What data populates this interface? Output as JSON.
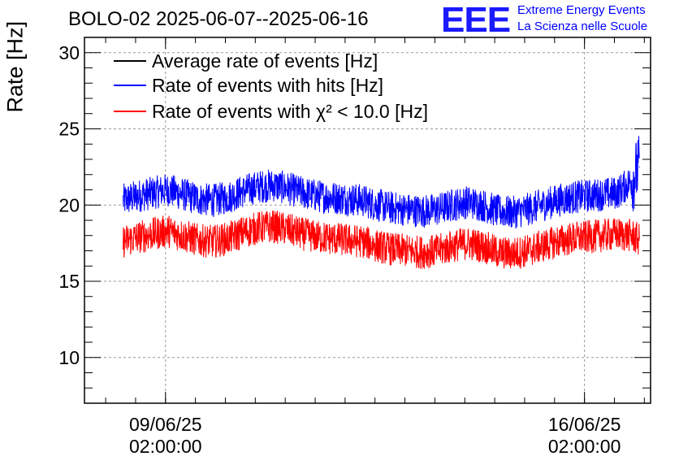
{
  "header": {
    "title": "BOLO-02 2025-06-07--2025-06-16",
    "logo_text": "EEE",
    "logo_line1": "Extreme Energy Events",
    "logo_line2": "La Scienza nelle Scuole"
  },
  "colors": {
    "average": "#000000",
    "hits": "#0000ff",
    "chi2": "#ff0000",
    "logo": "#1a1aff"
  },
  "chart_data": {
    "type": "line",
    "ylabel": "Rate [Hz]",
    "xlabel": "",
    "ylim": [
      7,
      31
    ],
    "yticks": [
      10,
      15,
      20,
      25,
      30
    ],
    "xlim": [
      "2025-06-07T17:30:00",
      "2025-06-17T04:30:00"
    ],
    "xticks": [
      {
        "x": "2025-06-09T02:00:00",
        "date": "09/06/25",
        "time": "02:00:00"
      },
      {
        "x": "2025-06-16T02:00:00",
        "date": "16/06/25",
        "time": "02:00:00"
      }
    ],
    "grid": true,
    "legend_position": "top-left",
    "series": [
      {
        "name": "Average rate of events [Hz]",
        "color": "#000000",
        "x": [],
        "y": []
      },
      {
        "name": "Rate of events with hits [Hz]",
        "color": "#0000ff",
        "x": [
          "2025-06-08T09:00:00",
          "2025-06-08T15:00:00",
          "2025-06-08T21:00:00",
          "2025-06-09T03:00:00",
          "2025-06-09T09:00:00",
          "2025-06-09T15:00:00",
          "2025-06-09T21:00:00",
          "2025-06-10T03:00:00",
          "2025-06-10T09:00:00",
          "2025-06-10T15:00:00",
          "2025-06-10T21:00:00",
          "2025-06-11T03:00:00",
          "2025-06-11T09:00:00",
          "2025-06-11T15:00:00",
          "2025-06-11T21:00:00",
          "2025-06-12T03:00:00",
          "2025-06-12T09:00:00",
          "2025-06-12T15:00:00",
          "2025-06-12T21:00:00",
          "2025-06-13T03:00:00",
          "2025-06-13T09:00:00",
          "2025-06-13T15:00:00",
          "2025-06-13T21:00:00",
          "2025-06-14T03:00:00",
          "2025-06-14T09:00:00",
          "2025-06-14T15:00:00",
          "2025-06-14T21:00:00",
          "2025-06-15T03:00:00",
          "2025-06-15T09:00:00",
          "2025-06-15T15:00:00",
          "2025-06-15T21:00:00",
          "2025-06-16T03:00:00",
          "2025-06-16T09:00:00",
          "2025-06-16T15:00:00",
          "2025-06-16T21:00:00",
          "2025-06-17T00:00:00"
        ],
        "y": [
          20.3,
          20.6,
          20.8,
          21.0,
          20.7,
          20.4,
          20.3,
          20.5,
          20.9,
          21.2,
          21.3,
          21.1,
          20.8,
          20.6,
          20.5,
          20.4,
          20.3,
          20.0,
          19.8,
          19.7,
          19.6,
          19.7,
          20.0,
          20.2,
          20.0,
          19.6,
          19.5,
          19.7,
          20.0,
          20.3,
          20.5,
          20.6,
          20.7,
          20.8,
          21.6,
          22.5
        ]
      },
      {
        "name": "Rate of events with χ² < 10.0 [Hz]",
        "color": "#ff0000",
        "x": [
          "2025-06-08T09:00:00",
          "2025-06-08T15:00:00",
          "2025-06-08T21:00:00",
          "2025-06-09T03:00:00",
          "2025-06-09T09:00:00",
          "2025-06-09T15:00:00",
          "2025-06-09T21:00:00",
          "2025-06-10T03:00:00",
          "2025-06-10T09:00:00",
          "2025-06-10T15:00:00",
          "2025-06-10T21:00:00",
          "2025-06-11T03:00:00",
          "2025-06-11T09:00:00",
          "2025-06-11T15:00:00",
          "2025-06-11T21:00:00",
          "2025-06-12T03:00:00",
          "2025-06-12T09:00:00",
          "2025-06-12T15:00:00",
          "2025-06-12T21:00:00",
          "2025-06-13T03:00:00",
          "2025-06-13T09:00:00",
          "2025-06-13T15:00:00",
          "2025-06-13T21:00:00",
          "2025-06-14T03:00:00",
          "2025-06-14T09:00:00",
          "2025-06-14T15:00:00",
          "2025-06-14T21:00:00",
          "2025-06-15T03:00:00",
          "2025-06-15T09:00:00",
          "2025-06-15T15:00:00",
          "2025-06-15T21:00:00",
          "2025-06-16T03:00:00",
          "2025-06-16T09:00:00",
          "2025-06-16T15:00:00",
          "2025-06-16T21:00:00",
          "2025-06-17T00:00:00"
        ],
        "y": [
          17.6,
          17.9,
          18.1,
          18.3,
          18.0,
          17.7,
          17.6,
          17.8,
          18.2,
          18.5,
          18.6,
          18.4,
          18.1,
          17.9,
          17.8,
          17.7,
          17.6,
          17.3,
          17.1,
          17.0,
          16.9,
          17.0,
          17.3,
          17.5,
          17.3,
          16.9,
          16.8,
          17.0,
          17.3,
          17.6,
          17.8,
          17.9,
          18.0,
          18.1,
          18.0,
          17.7
        ]
      }
    ]
  }
}
